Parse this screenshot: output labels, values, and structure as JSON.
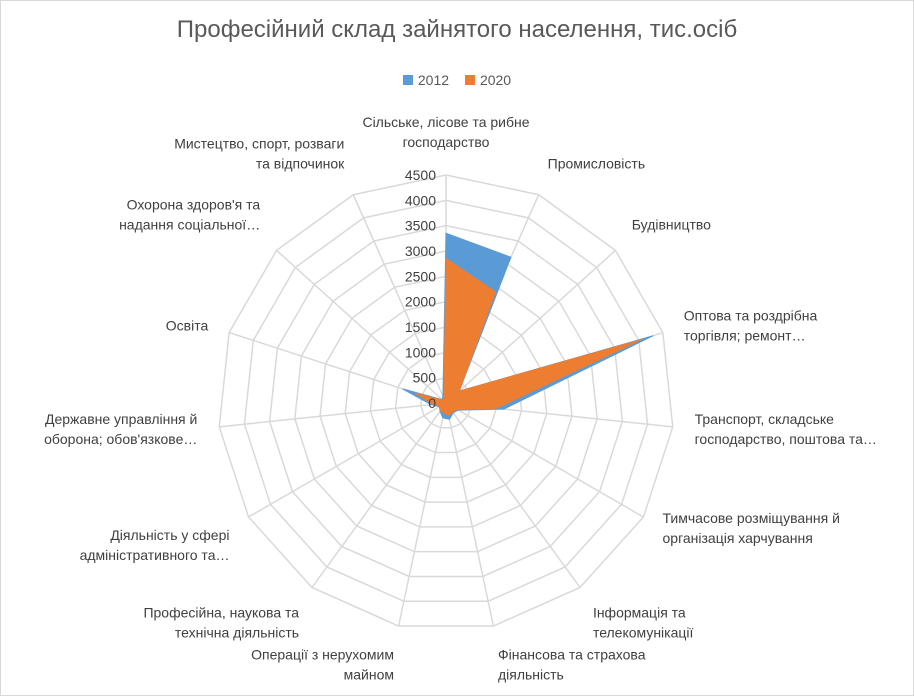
{
  "chart_data": {
    "type": "radar",
    "title": "Професійний склад зайнятого населення, тис.осіб",
    "legend_position": "top",
    "grid": true,
    "ylim": [
      0,
      4500
    ],
    "ticks": [
      0,
      500,
      1000,
      1500,
      2000,
      2500,
      3000,
      3500,
      4000,
      4500
    ],
    "categories": [
      [
        "Сільське, лісове та рибне",
        "господарство"
      ],
      [
        "Промисловість"
      ],
      [
        "Будівництво"
      ],
      [
        "Оптова та роздрібна",
        "торгівля; ремонт…"
      ],
      [
        "Транспорт, складське",
        "господарство, поштова та…"
      ],
      [
        "Тимчасове розміщування й",
        "організація харчування"
      ],
      [
        "Інформація та",
        "телекомунікації"
      ],
      [
        "Фінансова та страхова",
        "діяльність"
      ],
      [
        "Операції з нерухомим",
        "майном"
      ],
      [
        "Професійна, наукова та",
        "технічна діяльність"
      ],
      [
        "Діяльність у сфері",
        "адміністративного та…"
      ],
      [
        "Державне управління й",
        "оборона; обов'язкове…"
      ],
      [
        "Освіта"
      ],
      [
        "Охорона здоров'я та",
        "надання соціальної…"
      ],
      [
        "Мистецтво, спорт, розваги",
        "та відпочинок"
      ]
    ],
    "series": [
      {
        "name": "2012",
        "color": "#5b9bd5",
        "values": [
          3350,
          3150,
          350,
          4300,
          1150,
          280,
          240,
          330,
          300,
          200,
          150,
          300,
          900,
          100,
          150
        ]
      },
      {
        "name": "2020",
        "color": "#ed7d31",
        "values": [
          2850,
          2400,
          350,
          4050,
          1000,
          250,
          220,
          250,
          200,
          180,
          130,
          250,
          650,
          80,
          100
        ]
      }
    ]
  }
}
